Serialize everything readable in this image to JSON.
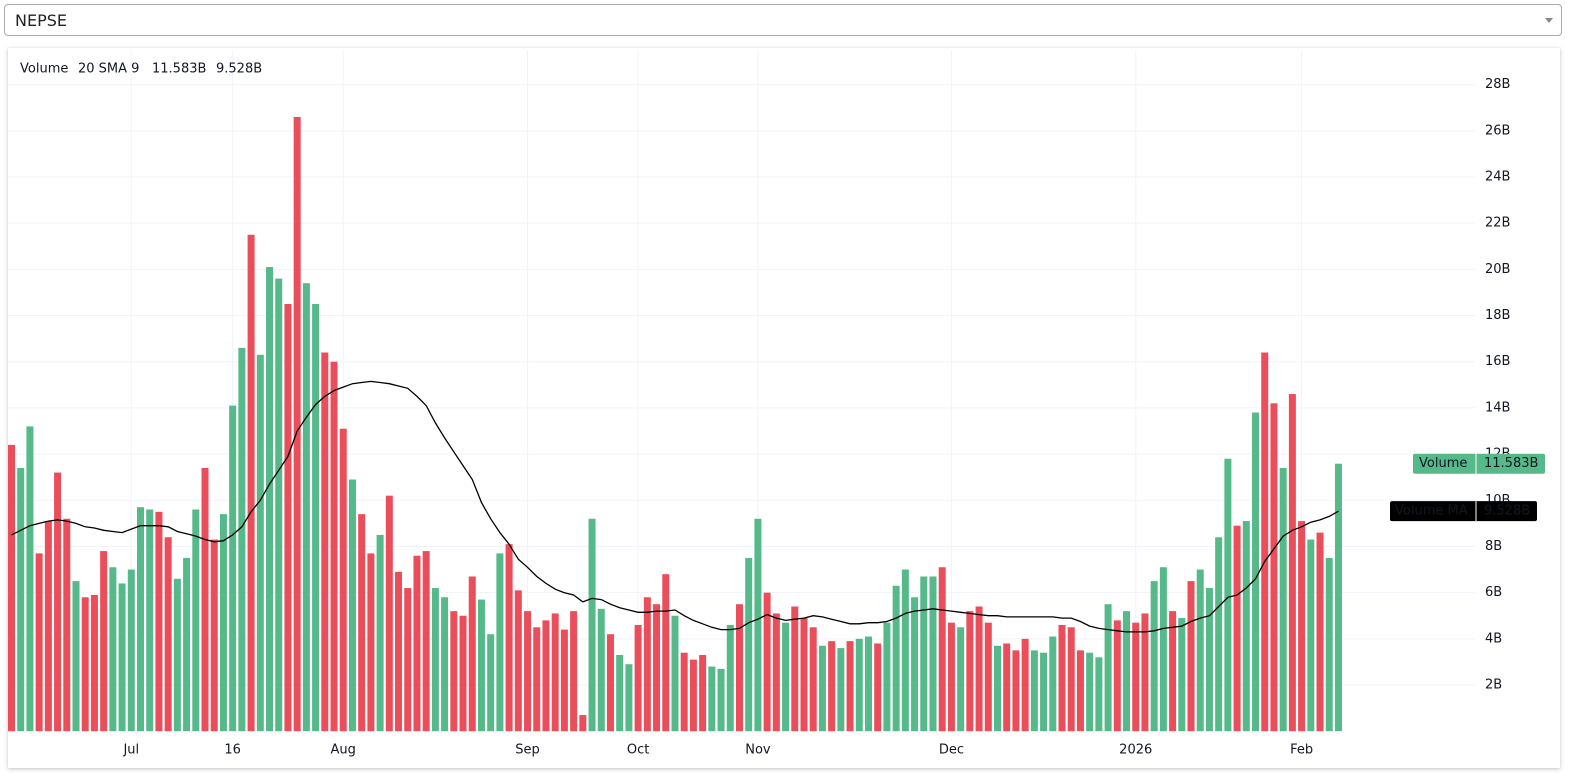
{
  "selector": {
    "value": "NEPSE"
  },
  "chart_data": {
    "type": "bar",
    "legend_params": "20 SMA 9",
    "categories": [
      null,
      null,
      null,
      null,
      null,
      null,
      null,
      null,
      null,
      null,
      null,
      null,
      null,
      "Jul",
      null,
      null,
      null,
      null,
      null,
      null,
      null,
      null,
      null,
      null,
      "16",
      null,
      null,
      null,
      null,
      null,
      null,
      null,
      null,
      null,
      null,
      null,
      "Aug",
      null,
      null,
      null,
      null,
      null,
      null,
      null,
      null,
      null,
      null,
      null,
      null,
      null,
      null,
      null,
      null,
      null,
      null,
      null,
      "Sep",
      null,
      null,
      null,
      null,
      null,
      null,
      null,
      null,
      null,
      null,
      null,
      "Oct",
      null,
      null,
      null,
      null,
      null,
      null,
      null,
      null,
      null,
      null,
      null,
      null,
      "Nov",
      null,
      null,
      null,
      null,
      null,
      null,
      null,
      null,
      null,
      null,
      null,
      null,
      null,
      null,
      null,
      null,
      null,
      null,
      null,
      null,
      "Dec",
      null,
      null,
      null,
      null,
      null,
      null,
      null,
      null,
      null,
      null,
      null,
      null,
      null,
      null,
      null,
      null,
      null,
      null,
      null,
      "2026",
      null,
      null,
      null,
      null,
      null,
      null,
      null,
      null,
      null,
      null,
      null,
      null,
      null,
      null,
      null,
      null,
      null,
      "Feb",
      null,
      null,
      null,
      null
    ],
    "ylim": [
      0,
      29.5
    ],
    "yticks": [
      {
        "value": 2,
        "label": "2B"
      },
      {
        "value": 4,
        "label": "4B"
      },
      {
        "value": 6,
        "label": "6B"
      },
      {
        "value": 8,
        "label": "8B"
      },
      {
        "value": 10,
        "label": "10B"
      },
      {
        "value": 12,
        "label": "12B"
      },
      {
        "value": 14,
        "label": "14B"
      },
      {
        "value": 16,
        "label": "16B"
      },
      {
        "value": 18,
        "label": "18B"
      },
      {
        "value": 20,
        "label": "20B"
      },
      {
        "value": 22,
        "label": "22B"
      },
      {
        "value": 24,
        "label": "24B"
      },
      {
        "value": 26,
        "label": "26B"
      },
      {
        "value": 28,
        "label": "28B"
      }
    ],
    "grid": true,
    "series": [
      {
        "name": "Volume",
        "color": "#55b98a",
        "last_label": "11.583B",
        "values": [
          12.4,
          11.4,
          13.2,
          7.7,
          9.1,
          11.2,
          9.2,
          6.5,
          5.8,
          5.9,
          7.8,
          7.1,
          6.4,
          7.0,
          9.7,
          9.6,
          9.5,
          8.4,
          6.6,
          7.5,
          9.6,
          11.4,
          8.3,
          9.4,
          14.1,
          16.6,
          21.5,
          16.3,
          20.1,
          19.6,
          18.5,
          26.6,
          19.4,
          18.5,
          16.4,
          16.0,
          13.1,
          10.9,
          9.4,
          7.7,
          8.5,
          10.2,
          6.9,
          6.2,
          7.6,
          7.8,
          6.2,
          5.8,
          5.2,
          5.0,
          6.7,
          5.7,
          4.2,
          7.7,
          8.1,
          6.1,
          5.2,
          4.5,
          4.8,
          5.1,
          4.4,
          5.2,
          0.7,
          9.2,
          5.3,
          4.2,
          3.3,
          2.9,
          4.6,
          5.8,
          5.5,
          6.8,
          5.0,
          3.4,
          3.1,
          3.3,
          2.8,
          2.7,
          4.6,
          5.5,
          7.5,
          9.2,
          6.0,
          5.1,
          4.7,
          5.4,
          4.9,
          4.5,
          3.7,
          3.9,
          3.6,
          3.9,
          4.0,
          4.1,
          3.8,
          4.7,
          6.3,
          7.0,
          5.8,
          6.7,
          6.7,
          7.1,
          4.7,
          4.5,
          5.2,
          5.4,
          4.7,
          3.7,
          3.8,
          3.5,
          4.0,
          3.5,
          3.4,
          4.1,
          4.6,
          4.5,
          3.5,
          3.4,
          3.2,
          5.5,
          4.8,
          5.2,
          4.7,
          5.1,
          6.5,
          7.1,
          5.2,
          4.9,
          6.5,
          7.0,
          6.2,
          8.4,
          11.8,
          8.9,
          9.1,
          13.8,
          16.4,
          14.2,
          11.4,
          14.6,
          9.1,
          8.3,
          8.6,
          7.5,
          11.583
        ],
        "colors": [
          "#ea4e5b",
          "#55b98a",
          "#55b98a",
          "#ea4e5b",
          "#ea4e5b",
          "#ea4e5b",
          "#ea4e5b",
          "#55b98a",
          "#ea4e5b",
          "#ea4e5b",
          "#ea4e5b",
          "#55b98a",
          "#55b98a",
          "#55b98a",
          "#55b98a",
          "#55b98a",
          "#ea4e5b",
          "#ea4e5b",
          "#55b98a",
          "#55b98a",
          "#55b98a",
          "#ea4e5b",
          "#ea4e5b",
          "#55b98a",
          "#55b98a",
          "#55b98a",
          "#ea4e5b",
          "#55b98a",
          "#55b98a",
          "#55b98a",
          "#ea4e5b",
          "#ea4e5b",
          "#55b98a",
          "#55b98a",
          "#ea4e5b",
          "#ea4e5b",
          "#ea4e5b",
          "#55b98a",
          "#ea4e5b",
          "#ea4e5b",
          "#55b98a",
          "#ea4e5b",
          "#ea4e5b",
          "#ea4e5b",
          "#ea4e5b",
          "#ea4e5b",
          "#55b98a",
          "#55b98a",
          "#ea4e5b",
          "#ea4e5b",
          "#ea4e5b",
          "#55b98a",
          "#55b98a",
          "#55b98a",
          "#ea4e5b",
          "#ea4e5b",
          "#ea4e5b",
          "#ea4e5b",
          "#ea4e5b",
          "#ea4e5b",
          "#ea4e5b",
          "#ea4e5b",
          "#ea4e5b",
          "#55b98a",
          "#55b98a",
          "#ea4e5b",
          "#55b98a",
          "#55b98a",
          "#ea4e5b",
          "#ea4e5b",
          "#ea4e5b",
          "#ea4e5b",
          "#55b98a",
          "#ea4e5b",
          "#ea4e5b",
          "#ea4e5b",
          "#55b98a",
          "#55b98a",
          "#55b98a",
          "#ea4e5b",
          "#55b98a",
          "#55b98a",
          "#ea4e5b",
          "#ea4e5b",
          "#55b98a",
          "#ea4e5b",
          "#ea4e5b",
          "#ea4e5b",
          "#55b98a",
          "#ea4e5b",
          "#55b98a",
          "#ea4e5b",
          "#55b98a",
          "#55b98a",
          "#ea4e5b",
          "#55b98a",
          "#55b98a",
          "#55b98a",
          "#55b98a",
          "#55b98a",
          "#55b98a",
          "#ea4e5b",
          "#ea4e5b",
          "#55b98a",
          "#ea4e5b",
          "#ea4e5b",
          "#ea4e5b",
          "#55b98a",
          "#ea4e5b",
          "#ea4e5b",
          "#ea4e5b",
          "#55b98a",
          "#55b98a",
          "#55b98a",
          "#ea4e5b",
          "#ea4e5b",
          "#ea4e5b",
          "#55b98a",
          "#55b98a",
          "#55b98a",
          "#ea4e5b",
          "#55b98a",
          "#ea4e5b",
          "#ea4e5b",
          "#55b98a",
          "#55b98a",
          "#ea4e5b",
          "#55b98a",
          "#ea4e5b",
          "#55b98a",
          "#55b98a",
          "#55b98a",
          "#55b98a",
          "#ea4e5b",
          "#55b98a",
          "#55b98a",
          "#ea4e5b",
          "#ea4e5b",
          "#55b98a",
          "#ea4e5b",
          "#ea4e5b",
          "#55b98a",
          "#ea4e5b",
          "#55b98a",
          "#55b98a"
        ]
      },
      {
        "name": "Volume MA",
        "color": "#000000",
        "last_label": "9.528B",
        "values": [
          8.5,
          8.7,
          8.9,
          9.0,
          9.1,
          9.15,
          9.1,
          9.0,
          8.85,
          8.8,
          8.7,
          8.65,
          8.6,
          8.75,
          8.9,
          8.9,
          8.9,
          8.85,
          8.65,
          8.55,
          8.45,
          8.3,
          8.2,
          8.25,
          8.5,
          8.85,
          9.5,
          10.0,
          10.7,
          11.3,
          11.9,
          13.0,
          13.6,
          14.15,
          14.5,
          14.75,
          14.9,
          15.05,
          15.1,
          15.15,
          15.1,
          15.05,
          14.95,
          14.85,
          14.5,
          14.1,
          13.35,
          12.7,
          12.1,
          11.5,
          10.9,
          9.9,
          9.2,
          8.6,
          8.1,
          7.45,
          7.1,
          6.7,
          6.4,
          6.15,
          6.0,
          5.9,
          5.6,
          5.75,
          5.7,
          5.5,
          5.35,
          5.25,
          5.15,
          5.15,
          5.2,
          5.2,
          5.25,
          5.0,
          4.8,
          4.65,
          4.5,
          4.4,
          4.4,
          4.45,
          4.7,
          4.85,
          5.05,
          4.9,
          4.8,
          4.85,
          4.9,
          5.0,
          4.95,
          4.85,
          4.75,
          4.65,
          4.65,
          4.7,
          4.7,
          4.75,
          4.9,
          5.1,
          5.2,
          5.25,
          5.3,
          5.25,
          5.2,
          5.15,
          5.1,
          5.05,
          5.0,
          5.0,
          4.95,
          4.95,
          4.95,
          4.95,
          4.95,
          4.95,
          4.9,
          4.9,
          4.75,
          4.55,
          4.45,
          4.4,
          4.35,
          4.3,
          4.3,
          4.3,
          4.35,
          4.45,
          4.5,
          4.55,
          4.75,
          4.9,
          5.0,
          5.4,
          5.8,
          5.9,
          6.2,
          6.6,
          7.35,
          7.9,
          8.45,
          8.7,
          8.85,
          9.05,
          9.15,
          9.3,
          9.528
        ]
      }
    ]
  }
}
